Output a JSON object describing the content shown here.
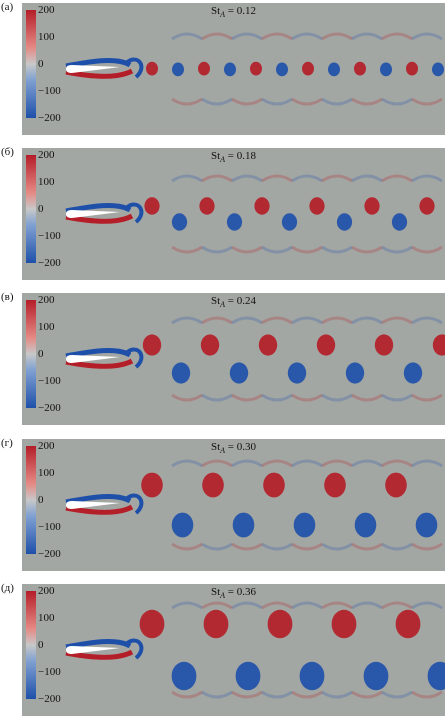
{
  "panels": [
    {
      "label": "(а)",
      "title_base": "St",
      "title_sub": "A",
      "title_value": "= 0.12"
    },
    {
      "label": "(б)",
      "title_base": "St",
      "title_sub": "A",
      "title_value": "= 0.18"
    },
    {
      "label": "(в)",
      "title_base": "St",
      "title_sub": "A",
      "title_value": "= 0.24"
    },
    {
      "label": "(г)",
      "title_base": "St",
      "title_sub": "A",
      "title_value": "= 0.30"
    },
    {
      "label": "(д)",
      "title_base": "St",
      "title_sub": "A",
      "title_value": "= 0.36"
    }
  ],
  "colorbar": {
    "ticks": [
      "200",
      "100",
      "0",
      "−100",
      "−200"
    ],
    "colors": {
      "positive": "#b41e28",
      "zero": "#c8c8c8",
      "negative": "#1e50aa",
      "background": "#a3a7a3"
    }
  }
}
